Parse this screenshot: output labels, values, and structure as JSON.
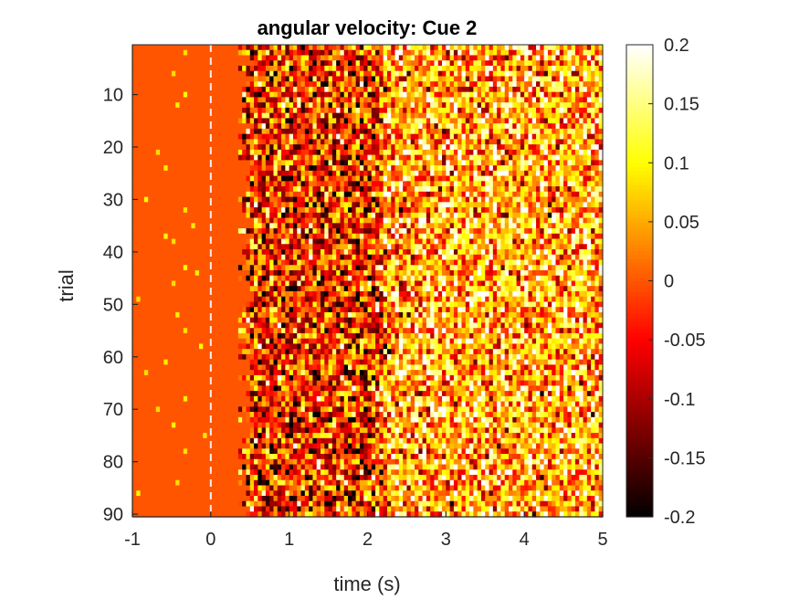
{
  "chart_data": {
    "type": "heatmap",
    "title": "angular velocity: Cue 2",
    "xlabel": "time (s)",
    "ylabel": "trial",
    "xlim": [
      -1,
      5
    ],
    "ylim": [
      0.5,
      90.5
    ],
    "y_reversed": true,
    "xticks": [
      -1,
      0,
      1,
      2,
      3,
      4,
      5
    ],
    "xtick_labels": [
      "-1",
      "0",
      "1",
      "2",
      "3",
      "4",
      "5"
    ],
    "yticks": [
      10,
      20,
      30,
      40,
      50,
      60,
      70,
      80,
      90
    ],
    "ytick_labels": [
      "10",
      "20",
      "30",
      "40",
      "50",
      "60",
      "70",
      "80",
      "90"
    ],
    "n_trials": 90,
    "n_time_bins": 120,
    "time_bin_width_s": 0.05,
    "cue_onset_marker": {
      "x": 0,
      "style": "dashed",
      "color": "#f0f0f0"
    },
    "colormap": "hot",
    "clim": [
      -0.2,
      0.2
    ],
    "colorbar": {
      "ticks": [
        -0.2,
        -0.15,
        -0.1,
        -0.05,
        0,
        0.05,
        0.1,
        0.15,
        0.2
      ],
      "tick_labels": [
        "-0.2",
        "-0.15",
        "-0.1",
        "-0.05",
        "0",
        "0.05",
        "0.1",
        "0.15",
        "0.2"
      ]
    },
    "description_of_values": {
      "baseline_value": 0.0,
      "pre_movement_window_s": [
        -1,
        0.5
      ],
      "sparse_pre_movement_events": [
        {
          "trial": 2,
          "t": -0.3,
          "value": 0.08
        },
        {
          "trial": 6,
          "t": -0.5,
          "value": 0.08
        },
        {
          "trial": 10,
          "t": -0.3,
          "value": 0.1
        },
        {
          "trial": 12,
          "t": -0.45,
          "value": 0.09
        },
        {
          "trial": 21,
          "t": -0.7,
          "value": 0.08
        },
        {
          "trial": 24,
          "t": -0.55,
          "value": 0.09
        },
        {
          "trial": 30,
          "t": -0.85,
          "value": 0.1
        },
        {
          "trial": 32,
          "t": -0.35,
          "value": 0.08
        },
        {
          "trial": 35,
          "t": -0.25,
          "value": 0.09
        },
        {
          "trial": 37,
          "t": -0.6,
          "value": 0.1
        },
        {
          "trial": 38,
          "t": -0.5,
          "value": 0.08
        },
        {
          "trial": 43,
          "t": -0.3,
          "value": 0.1
        },
        {
          "trial": 44,
          "t": -0.2,
          "value": 0.09
        },
        {
          "trial": 46,
          "t": -0.5,
          "value": 0.08
        },
        {
          "trial": 49,
          "t": -0.9,
          "value": 0.08
        },
        {
          "trial": 52,
          "t": -0.4,
          "value": 0.09
        },
        {
          "trial": 55,
          "t": -0.3,
          "value": 0.08
        },
        {
          "trial": 58,
          "t": -0.15,
          "value": 0.1
        },
        {
          "trial": 61,
          "t": -0.55,
          "value": 0.09
        },
        {
          "trial": 63,
          "t": -0.8,
          "value": 0.08
        },
        {
          "trial": 68,
          "t": -0.35,
          "value": 0.09
        },
        {
          "trial": 70,
          "t": -0.65,
          "value": 0.08
        },
        {
          "trial": 73,
          "t": -0.5,
          "value": 0.1
        },
        {
          "trial": 75,
          "t": -0.1,
          "value": 0.09
        },
        {
          "trial": 78,
          "t": -0.3,
          "value": 0.08
        },
        {
          "trial": 84,
          "t": -0.45,
          "value": 0.08
        },
        {
          "trial": 86,
          "t": -0.95,
          "value": 0.1
        }
      ],
      "movement_onset_s": 0.45,
      "early_response_window_s": [
        0.5,
        2.2
      ],
      "early_response_mean": -0.02,
      "early_response_spread": 0.1,
      "late_response_window_s": [
        2.2,
        5
      ],
      "late_response_mean": 0.06,
      "late_response_spread": 0.09
    }
  }
}
